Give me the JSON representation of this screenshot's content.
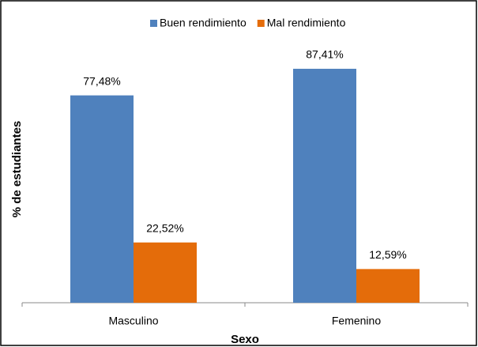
{
  "chart_data": {
    "type": "bar",
    "x_label": "Sexo",
    "y_label": "% de estudiantes",
    "categories": [
      "Masculino",
      "Femenino"
    ],
    "series": [
      {
        "name": "Buen rendimiento",
        "color": "#4f81bd",
        "values": [
          77.48,
          87.41
        ],
        "value_labels": [
          "77,48%",
          "87,41%"
        ]
      },
      {
        "name": "Mal rendimiento",
        "color": "#e46c0a",
        "values": [
          22.52,
          12.59
        ],
        "value_labels": [
          "22,52%",
          "12,59%"
        ]
      }
    ],
    "ylim": [
      0,
      100
    ],
    "legend": "top"
  }
}
